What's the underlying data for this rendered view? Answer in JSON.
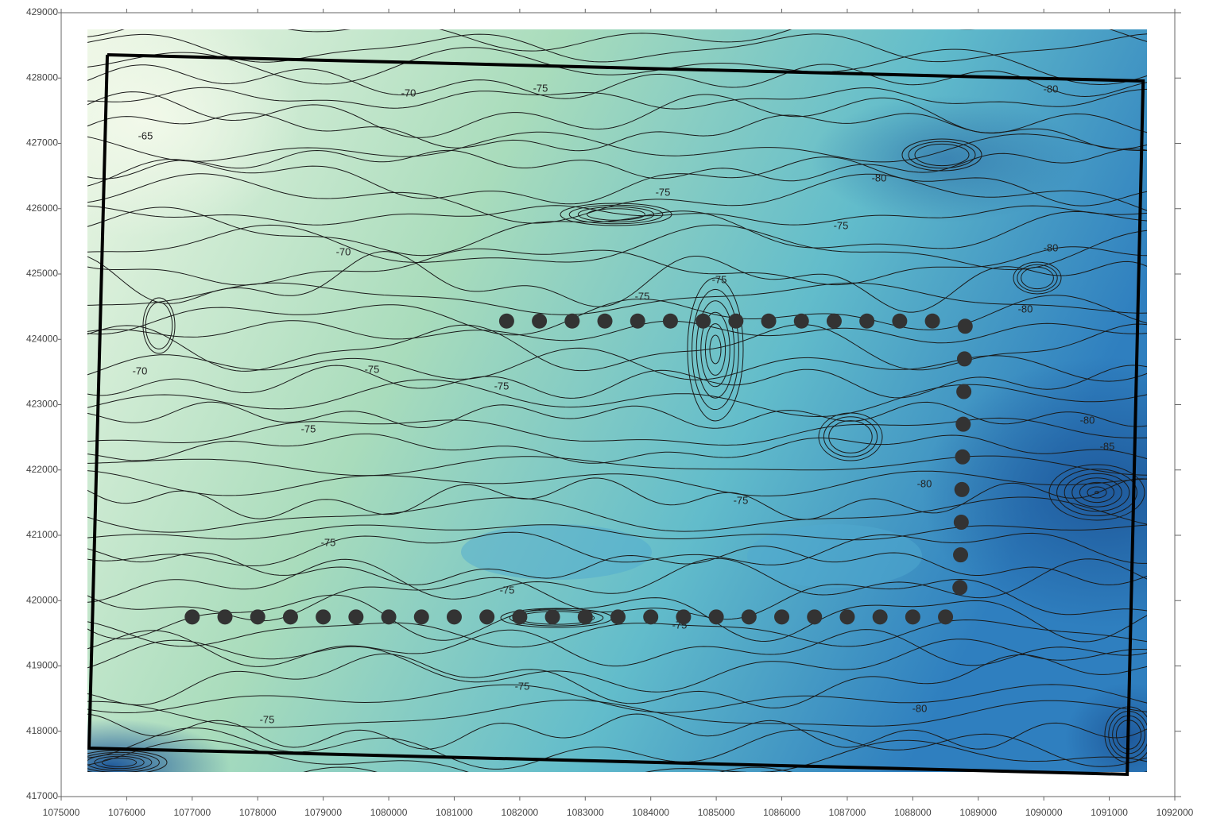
{
  "chart_data": {
    "type": "contour",
    "xlim": [
      1075000,
      1092000
    ],
    "ylim": [
      417000,
      429000
    ],
    "xticks": [
      1075000,
      1076000,
      1077000,
      1078000,
      1079000,
      1080000,
      1081000,
      1082000,
      1083000,
      1084000,
      1085000,
      1086000,
      1087000,
      1088000,
      1089000,
      1090000,
      1091000,
      1092000
    ],
    "yticks": [
      417000,
      418000,
      419000,
      420000,
      421000,
      422000,
      423000,
      424000,
      425000,
      426000,
      427000,
      428000,
      429000
    ],
    "grid": false,
    "colors": [
      "#eef7e6",
      "#a9dcbc",
      "#62bccb",
      "#1f63a8"
    ],
    "contour_labels": [
      -65,
      -70,
      -70,
      -70,
      -75,
      -75,
      -75,
      -75,
      -75,
      -75,
      -75,
      -75,
      -75,
      -75,
      -75,
      -75,
      -75,
      -75,
      -80,
      -80,
      -80,
      -80,
      -80,
      -85,
      -80,
      -80
    ],
    "boundary": {
      "color": "#000000",
      "x": [
        1075704,
        1091517,
        1091274,
        1075425,
        1075704
      ],
      "y": [
        428356,
        427955,
        417341,
        417742,
        428356
      ]
    },
    "points": {
      "color": "#333333",
      "x": [
        1077000,
        1077500,
        1078000,
        1078500,
        1079000,
        1079500,
        1080000,
        1080500,
        1081000,
        1081500,
        1082000,
        1082500,
        1083000,
        1083500,
        1084000,
        1084500,
        1085000,
        1085500,
        1086000,
        1086500,
        1087000,
        1087500,
        1088000,
        1088500,
        1081800,
        1082300,
        1082800,
        1083300,
        1083800,
        1084300,
        1084800,
        1085300,
        1085800,
        1086300,
        1086800,
        1087300,
        1087800,
        1088300,
        1088800,
        1088790,
        1088780,
        1088770,
        1088760,
        1088750,
        1088740,
        1088730,
        1088720
      ],
      "y": [
        419750,
        419750,
        419750,
        419750,
        419750,
        419750,
        419750,
        419750,
        419750,
        419750,
        419750,
        419750,
        419750,
        419750,
        419750,
        419750,
        419750,
        419750,
        419750,
        419750,
        419750,
        419750,
        419750,
        419750,
        424280,
        424280,
        424280,
        424280,
        424280,
        424280,
        424280,
        424280,
        424280,
        424280,
        424280,
        424280,
        424280,
        424280,
        424200,
        423700,
        423200,
        422700,
        422200,
        421700,
        421200,
        420700,
        420200
      ]
    }
  }
}
